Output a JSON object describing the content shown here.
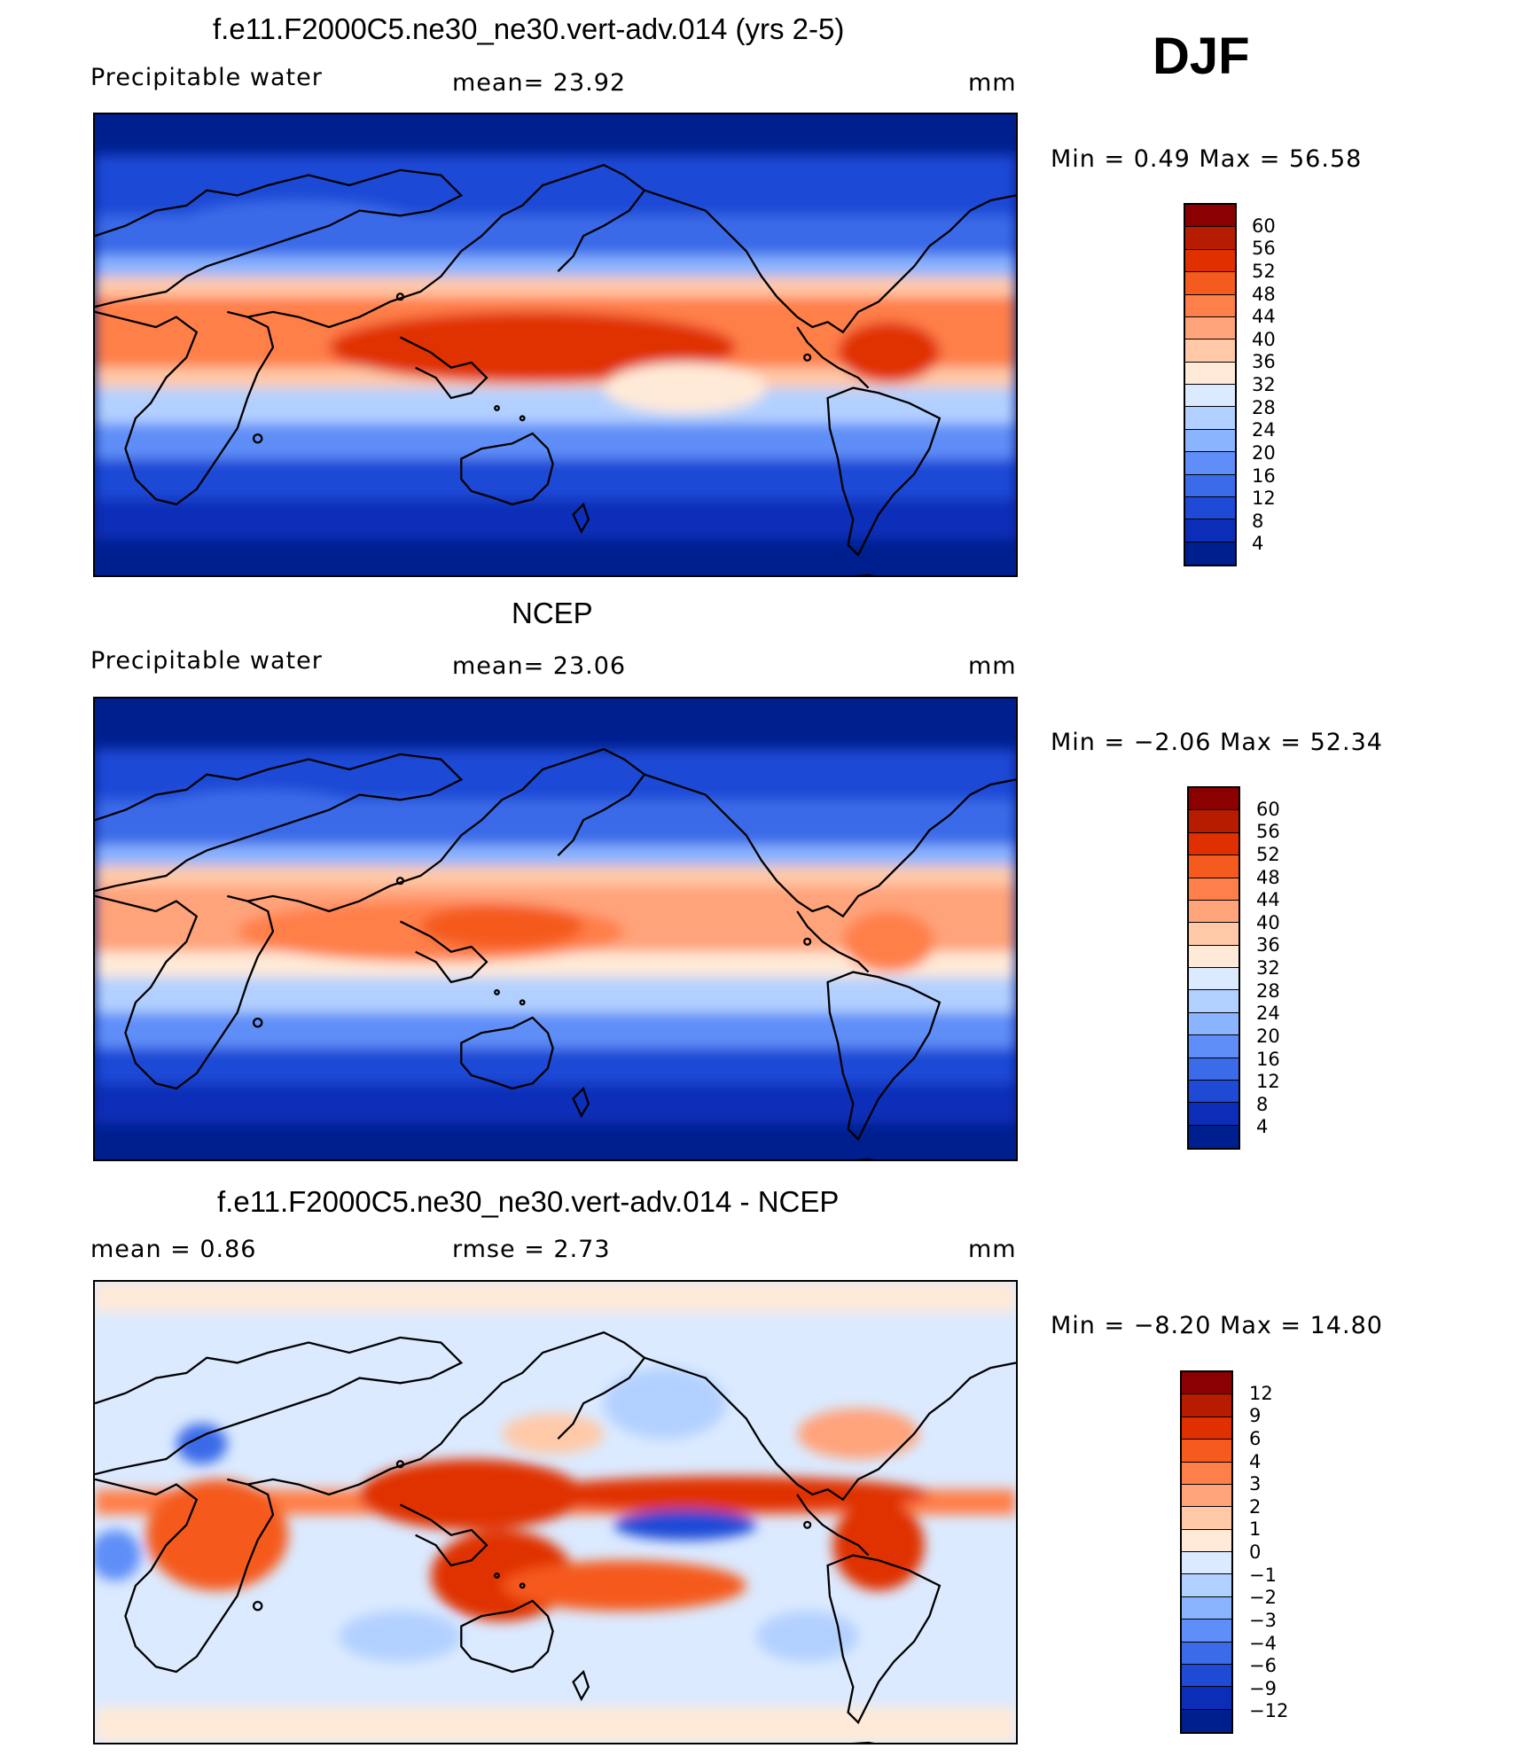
{
  "season": "DJF",
  "panels": [
    {
      "title": "f.e11.F2000C5.ne30_ne30.vert-adv.014 (yrs 2-5)",
      "left_label": "Precipitable  water",
      "mid_label": "mean=   23.92",
      "right_label": "mm",
      "minmax": "Min =     0.49  Max =    56.58",
      "colorbar": {
        "labels": [
          "60",
          "56",
          "52",
          "48",
          "44",
          "40",
          "36",
          "32",
          "28",
          "24",
          "20",
          "16",
          "12",
          "8",
          "4"
        ],
        "colors": [
          "#8b0000",
          "#b81c00",
          "#e03000",
          "#f55a1e",
          "#ff7f4a",
          "#ffa37a",
          "#ffc9a8",
          "#ffead8",
          "#dbeaff",
          "#b2d0ff",
          "#8bb4ff",
          "#5f8ef8",
          "#3b6be8",
          "#1e4ad6",
          "#0b2db8",
          "#001f8f"
        ]
      }
    },
    {
      "title": "NCEP",
      "left_label": "Precipitable  water",
      "mid_label": "mean=   23.06",
      "right_label": "mm",
      "minmax": "Min =    −2.06  Max =    52.34",
      "colorbar": {
        "labels": [
          "60",
          "56",
          "52",
          "48",
          "44",
          "40",
          "36",
          "32",
          "28",
          "24",
          "20",
          "16",
          "12",
          "8",
          "4"
        ],
        "colors": [
          "#8b0000",
          "#b81c00",
          "#e03000",
          "#f55a1e",
          "#ff7f4a",
          "#ffa37a",
          "#ffc9a8",
          "#ffead8",
          "#dbeaff",
          "#b2d0ff",
          "#8bb4ff",
          "#5f8ef8",
          "#3b6be8",
          "#1e4ad6",
          "#0b2db8",
          "#001f8f"
        ]
      }
    },
    {
      "title": "f.e11.F2000C5.ne30_ne30.vert-adv.014 - NCEP",
      "left_label": "mean  =      0.86",
      "mid_label": "rmse  =      2.73",
      "right_label": "mm",
      "minmax": "Min =    −8.20  Max =     14.80",
      "colorbar": {
        "labels": [
          "12",
          "9",
          "6",
          "4",
          "3",
          "2",
          "1",
          "0",
          "−1",
          "−2",
          "−3",
          "−4",
          "−6",
          "−9",
          "−12"
        ],
        "colors": [
          "#8b0000",
          "#b81c00",
          "#e03000",
          "#f55a1e",
          "#ff7f4a",
          "#ffa37a",
          "#ffc9a8",
          "#ffead8",
          "#dbeaff",
          "#b2d0ff",
          "#8bb4ff",
          "#5f8ef8",
          "#3b6be8",
          "#1e4ad6",
          "#0b2db8",
          "#001f8f"
        ]
      }
    }
  ]
}
